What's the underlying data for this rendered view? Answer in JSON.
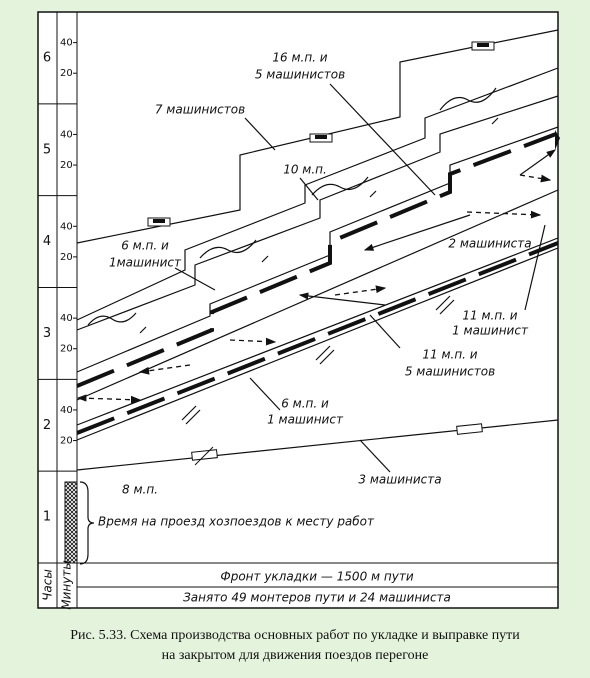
{
  "hour_rows": [
    {
      "hour": "6",
      "minutes": [
        "40",
        "20"
      ]
    },
    {
      "hour": "5",
      "minutes": [
        "40",
        "20"
      ]
    },
    {
      "hour": "4",
      "minutes": [
        "40",
        "20"
      ]
    },
    {
      "hour": "3",
      "minutes": [
        "40",
        "20"
      ]
    },
    {
      "hour": "2",
      "minutes": [
        "40",
        "20"
      ]
    },
    {
      "hour": "1",
      "minutes": []
    }
  ],
  "annotations": [
    {
      "lines": [
        "16 м.п. и",
        "5 машинистов"
      ]
    },
    {
      "lines": [
        "7 машинистов"
      ]
    },
    {
      "lines": [
        "10 м.п."
      ]
    },
    {
      "lines": [
        "6 м.п. и",
        "1машинист"
      ]
    },
    {
      "lines": [
        "2 машиниста"
      ]
    },
    {
      "lines": [
        "11 м.п. и",
        "1 машинист"
      ]
    },
    {
      "lines": [
        "11 м.п. и",
        "5 машинистов"
      ]
    },
    {
      "lines": [
        "6 м.п. и",
        "1 машинист"
      ]
    },
    {
      "lines": [
        "3 машиниста"
      ]
    },
    {
      "lines": [
        "8 м.п."
      ]
    },
    {
      "lines": [
        "Время на проезд хозпоездов к месту работ"
      ]
    }
  ],
  "axis_labels": {
    "hours": "Часы",
    "minutes": "Минуты"
  },
  "footer": [
    "Фронт укладки — 1500 м пути",
    "Занято 49 монтеров пути и 24 машиниста"
  ],
  "caption": [
    "Рис. 5.33. Схема производства основных работ по укладке и выправке пути",
    "на закрытом для движения поездов перегоне"
  ]
}
